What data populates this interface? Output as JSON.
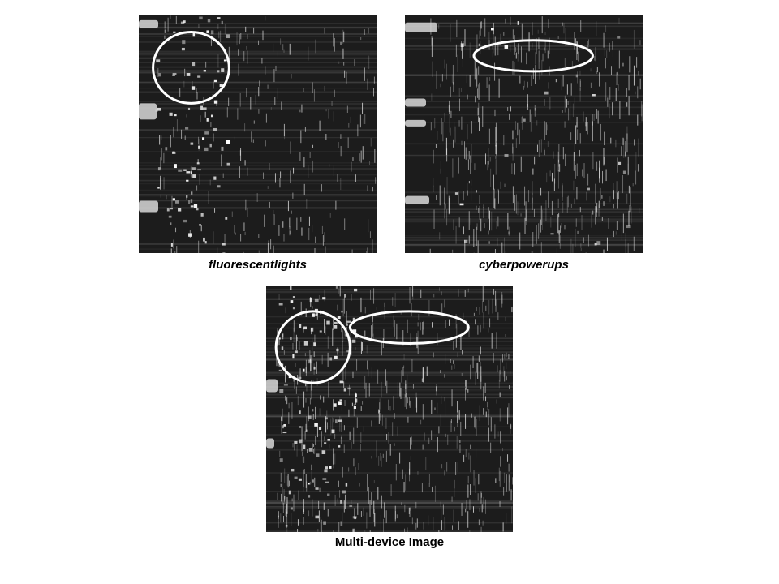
{
  "panels": [
    {
      "id": "fluorescentlights",
      "caption": "fluorescentlights",
      "italic": true
    },
    {
      "id": "cyberpowerups",
      "caption": "cyberpowerups",
      "italic": true
    },
    {
      "id": "multi-device",
      "caption": "Multi-device Image",
      "italic": false
    }
  ],
  "colors": {
    "background": "#ffffff",
    "panel_bg": "#1c1c1c",
    "signal": "#ffffff",
    "annotation": "#ffffff",
    "caption_text": "#000000"
  }
}
